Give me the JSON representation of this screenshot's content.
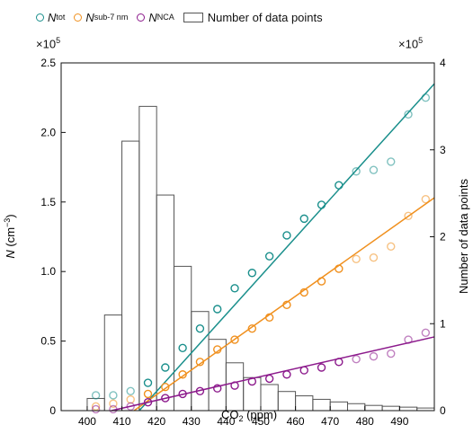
{
  "legend": {
    "ntot_sym": "N",
    "ntot_sub": "tot",
    "nsub7_sym": "N",
    "nsub7_sub": "sub-7 nm",
    "nnca_sym": "N",
    "nnca_sub": "NCA",
    "hist_label": "Number of data points"
  },
  "multiplier": {
    "left": "×10",
    "right": "×10",
    "exp": "5"
  },
  "axes": {
    "x_label_main": "CO",
    "x_label_sub": "2",
    "x_label_rest": " (ppm)",
    "y_label": "N (cm⁻³)",
    "y2_label": "Number of data points"
  },
  "colors": {
    "ntot": "#1a8f8c",
    "nsub7": "#f0901e",
    "nnca": "#8c1a8c",
    "hist": "#555555"
  },
  "chart_data": {
    "type": "scatter",
    "x": {
      "label": "CO2 (ppm)",
      "range": [
        392.5,
        500
      ],
      "ticks": [
        400,
        410,
        420,
        430,
        440,
        450,
        460,
        470,
        480,
        490
      ],
      "tick_labels": [
        "400",
        "410",
        "420",
        "430",
        "440",
        "450",
        "460",
        "470",
        "480",
        "490"
      ]
    },
    "y_left": {
      "label": "N (cm^-3)",
      "range": [
        0,
        2.5
      ],
      "multiplier": "x10^5",
      "ticks": [
        0,
        0.5,
        1.0,
        1.5,
        2.0,
        2.5
      ],
      "tick_labels": [
        "0",
        "0.5",
        "1.0",
        "1.5",
        "2.0",
        "2.5"
      ]
    },
    "y_right": {
      "label": "Number of data points",
      "range": [
        0,
        4
      ],
      "multiplier": "x10^5",
      "ticks": [
        0,
        1,
        2,
        3,
        4
      ],
      "tick_labels": [
        "0",
        "1",
        "2",
        "3",
        "4"
      ]
    },
    "grid": false,
    "legend_position": "top",
    "histogram": {
      "name": "Number of data points",
      "bin_edges": [
        400,
        405,
        410,
        415,
        420,
        425,
        430,
        435,
        440,
        445,
        450,
        455,
        460,
        465,
        470,
        475,
        480,
        485,
        490,
        495,
        500
      ],
      "counts": [
        0.14,
        1.1,
        3.1,
        3.5,
        2.48,
        1.66,
        1.14,
        0.82,
        0.55,
        0.38,
        0.3,
        0.22,
        0.17,
        0.13,
        0.1,
        0.08,
        0.06,
        0.05,
        0.04,
        0.03
      ]
    },
    "series": [
      {
        "name": "N_tot",
        "type": "scatter",
        "x": [
          402.5,
          407.5,
          412.5,
          417.5,
          422.5,
          427.5,
          432.5,
          437.5,
          442.5,
          447.5,
          452.5,
          457.5,
          462.5,
          467.5,
          472.5,
          477.5,
          482.5,
          487.5,
          492.5,
          497.5
        ],
        "y": [
          0.11,
          0.11,
          0.14,
          0.2,
          0.31,
          0.45,
          0.59,
          0.73,
          0.88,
          0.99,
          1.11,
          1.26,
          1.38,
          1.48,
          1.62,
          1.72,
          1.73,
          1.79,
          2.13,
          2.25
        ],
        "fit": {
          "x": [
            415,
            500
          ],
          "y": [
            0,
            2.35
          ]
        }
      },
      {
        "name": "N_sub-7 nm",
        "type": "scatter",
        "x": [
          402.5,
          407.5,
          412.5,
          417.5,
          422.5,
          427.5,
          432.5,
          437.5,
          442.5,
          447.5,
          452.5,
          457.5,
          462.5,
          467.5,
          472.5,
          477.5,
          482.5,
          487.5,
          492.5,
          497.5
        ],
        "y": [
          0.03,
          0.05,
          0.08,
          0.12,
          0.17,
          0.26,
          0.35,
          0.44,
          0.51,
          0.59,
          0.67,
          0.76,
          0.85,
          0.93,
          1.02,
          1.09,
          1.1,
          1.18,
          1.4,
          1.52
        ],
        "fit": {
          "x": [
            413.5,
            500
          ],
          "y": [
            0,
            1.53
          ]
        }
      },
      {
        "name": "N_NCA",
        "type": "scatter",
        "x": [
          402.5,
          407.5,
          412.5,
          417.5,
          422.5,
          427.5,
          432.5,
          437.5,
          442.5,
          447.5,
          452.5,
          457.5,
          462.5,
          467.5,
          472.5,
          477.5,
          482.5,
          487.5,
          492.5,
          497.5
        ],
        "y": [
          0.01,
          0.01,
          0.03,
          0.06,
          0.09,
          0.12,
          0.14,
          0.16,
          0.18,
          0.21,
          0.23,
          0.26,
          0.29,
          0.31,
          0.35,
          0.37,
          0.39,
          0.41,
          0.51,
          0.56
        ],
        "fit": {
          "x": [
            407,
            500
          ],
          "y": [
            0,
            0.53
          ]
        }
      }
    ]
  }
}
